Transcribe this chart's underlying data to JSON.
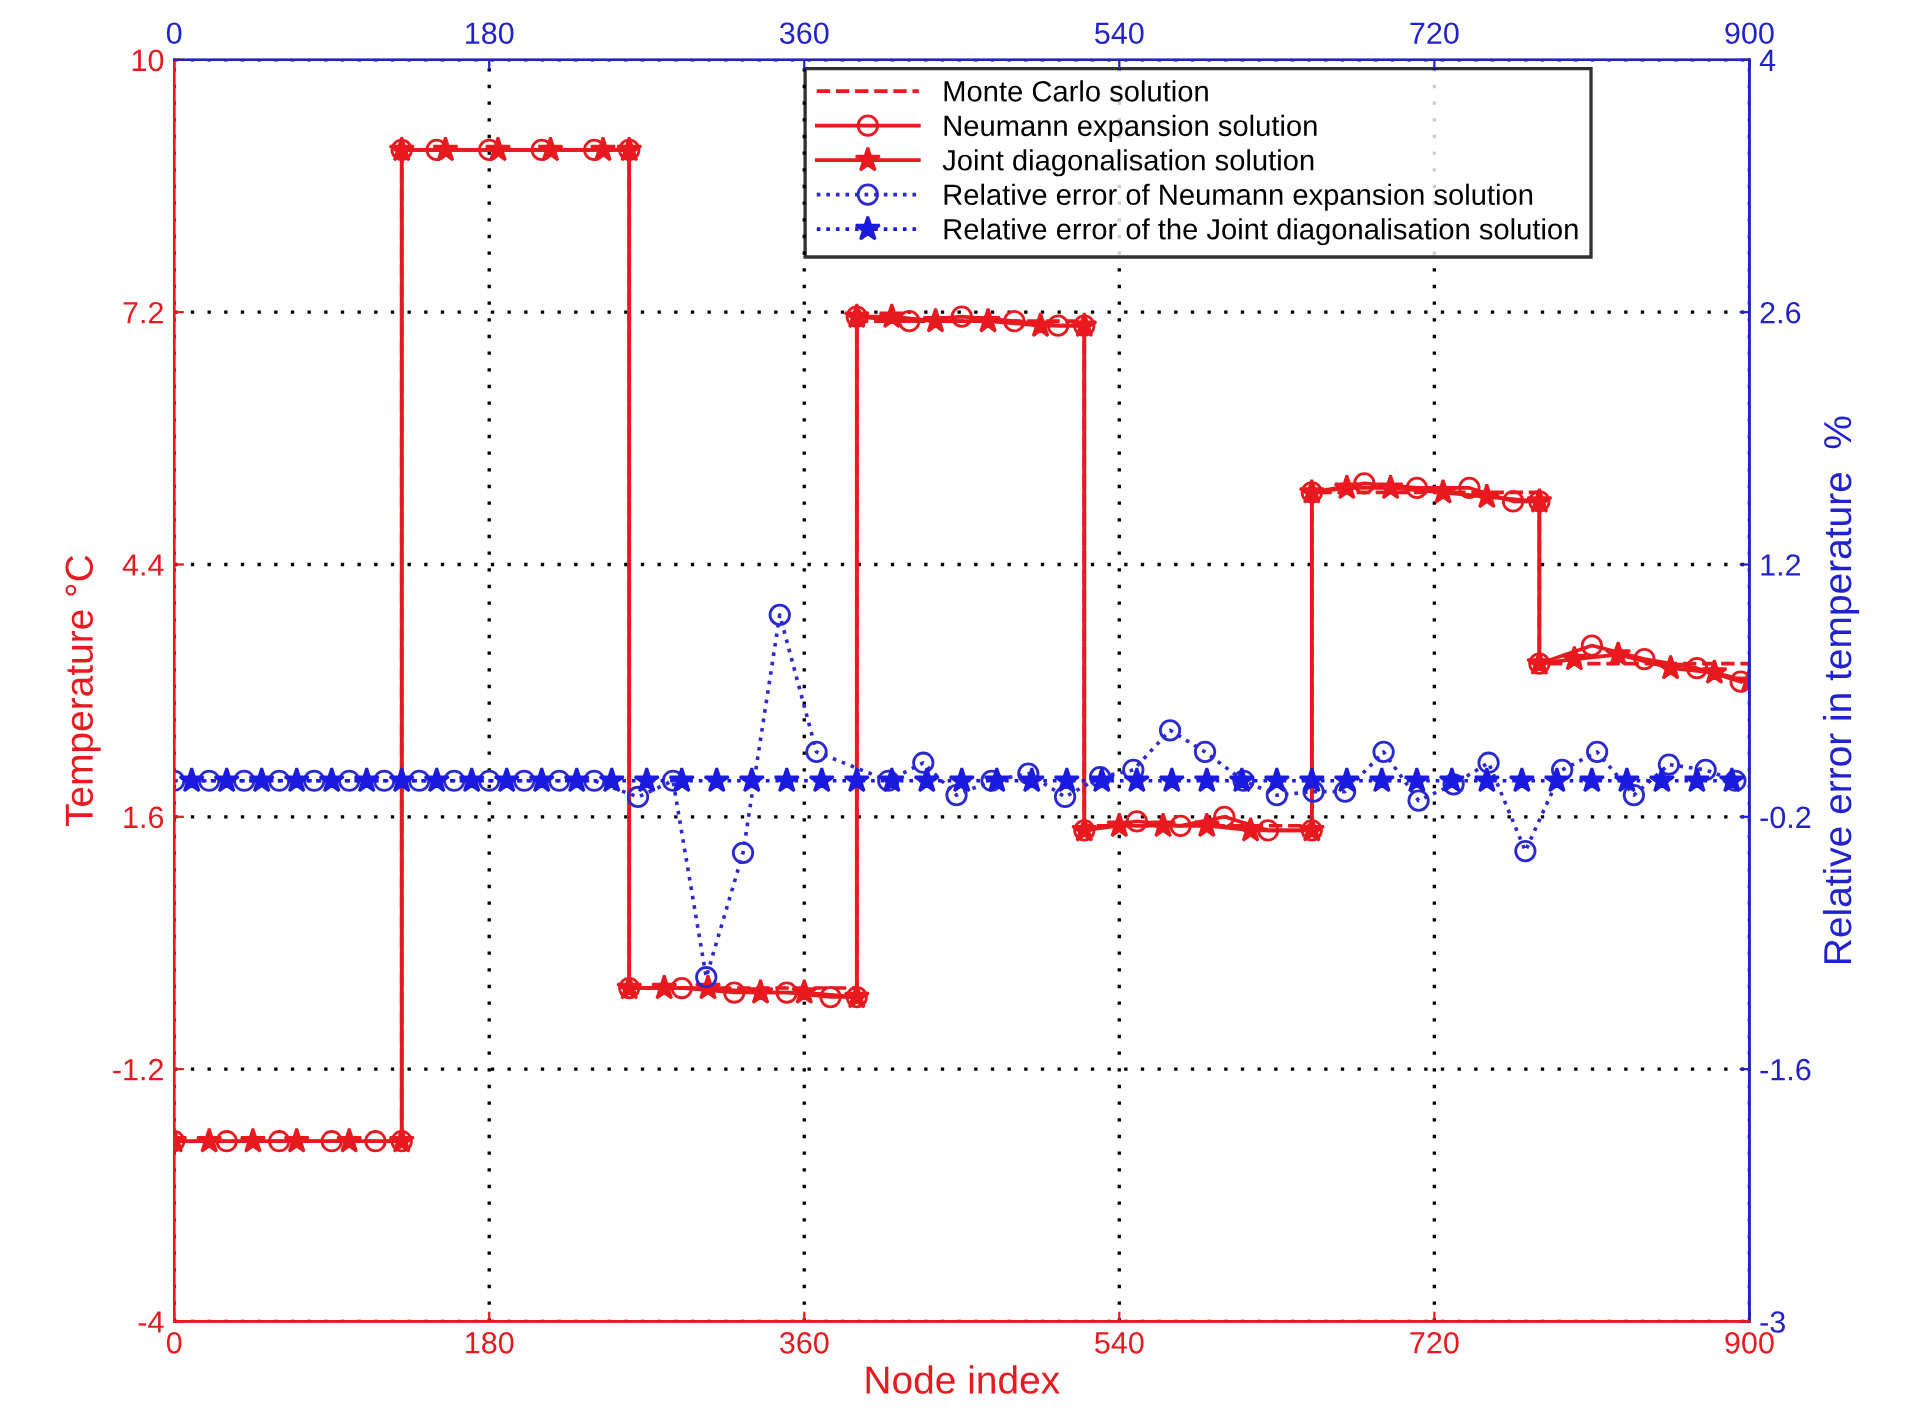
{
  "chart_data": {
    "type": "line",
    "xlabel": "Node index",
    "ylabel": "Temperature °C",
    "y2label": "Relative error in temperature  %",
    "xlim": [
      0,
      900
    ],
    "xticks": [
      0,
      180,
      360,
      540,
      720,
      900
    ],
    "x2lim": [
      0,
      900
    ],
    "x2ticks": [
      0,
      180,
      360,
      540,
      720,
      900
    ],
    "ylim": [
      -4,
      10
    ],
    "yticks": [
      -4,
      -1.2,
      1.6,
      4.4,
      7.2,
      10
    ],
    "y2lim": [
      -3,
      4
    ],
    "y2ticks": [
      -3,
      -1.6,
      -0.2,
      1.2,
      2.6,
      4
    ],
    "grid": true,
    "legend": "top right",
    "series": [
      {
        "name": "Monte Carlo solution",
        "type": "step",
        "color": "#e8191f",
        "line_style": "dashed",
        "x": [
          0,
          130,
          260,
          390,
          520,
          650,
          780,
          900
        ],
        "values": [
          -2.0,
          9.0,
          -0.3,
          7.1,
          1.5,
          5.2,
          3.3,
          3.1
        ]
      },
      {
        "name": "Neumann expansion solution",
        "color": "#e8191f",
        "line_style": "solid",
        "marker": "circle",
        "x": [
          0,
          30,
          60,
          90,
          115,
          130,
          130,
          150,
          180,
          210,
          240,
          260,
          260,
          290,
          320,
          350,
          375,
          390,
          390,
          420,
          450,
          480,
          505,
          520,
          520,
          550,
          575,
          600,
          625,
          650,
          650,
          680,
          710,
          740,
          765,
          780,
          780,
          810,
          840,
          870,
          895
        ],
        "values": [
          -2.0,
          -2.0,
          -2.0,
          -2.0,
          -2.0,
          -2.0,
          9.0,
          9.0,
          9.0,
          9.0,
          9.0,
          9.0,
          -0.3,
          -0.3,
          -0.35,
          -0.35,
          -0.4,
          -0.4,
          7.15,
          7.1,
          7.15,
          7.1,
          7.05,
          7.05,
          1.45,
          1.55,
          1.5,
          1.6,
          1.45,
          1.45,
          5.2,
          5.3,
          5.25,
          5.25,
          5.1,
          5.1,
          3.3,
          3.5,
          3.35,
          3.25,
          3.1
        ]
      },
      {
        "name": "Joint diagonalisation solution",
        "color": "#e8191f",
        "line_style": "solid",
        "marker": "star",
        "x": [
          0,
          20,
          45,
          70,
          100,
          130,
          130,
          155,
          185,
          215,
          245,
          260,
          260,
          280,
          305,
          335,
          360,
          390,
          390,
          410,
          435,
          465,
          495,
          520,
          520,
          540,
          565,
          590,
          615,
          650,
          650,
          670,
          695,
          725,
          750,
          780,
          780,
          800,
          825,
          855,
          880,
          900
        ],
        "values": [
          -2.0,
          -2.0,
          -2.0,
          -2.0,
          -2.0,
          -2.0,
          9.0,
          9.0,
          9.0,
          9.0,
          9.0,
          9.0,
          -0.3,
          -0.3,
          -0.3,
          -0.35,
          -0.35,
          -0.4,
          7.15,
          7.15,
          7.1,
          7.1,
          7.05,
          7.05,
          1.45,
          1.5,
          1.5,
          1.5,
          1.45,
          1.45,
          5.2,
          5.25,
          5.25,
          5.2,
          5.15,
          5.1,
          3.3,
          3.35,
          3.4,
          3.25,
          3.2,
          3.1
        ]
      },
      {
        "name": "Relative error of Neumann expansion solution",
        "axis": "y2",
        "color": "#2a2ad0",
        "line_style": "dotted",
        "marker": "circle",
        "x": [
          0,
          20,
          40,
          60,
          80,
          100,
          120,
          140,
          160,
          180,
          200,
          220,
          240,
          265,
          285,
          304,
          325,
          346,
          367,
          408,
          428,
          447,
          467,
          488,
          509,
          529,
          548,
          569,
          589,
          611,
          630,
          651,
          669,
          691,
          711,
          731,
          751,
          772,
          793,
          813,
          834,
          854,
          875,
          892
        ],
        "values": [
          0,
          0,
          0,
          0,
          0,
          0,
          0,
          0,
          0,
          0,
          0,
          0,
          0,
          -0.09,
          0,
          -1.09,
          -0.4,
          0.92,
          0.16,
          0,
          0.1,
          -0.08,
          0,
          0.04,
          -0.09,
          0.02,
          0.06,
          0.28,
          0.16,
          0,
          -0.08,
          -0.06,
          -0.06,
          0.16,
          -0.11,
          -0.02,
          0.1,
          -0.39,
          0.06,
          0.16,
          -0.08,
          0.09,
          0.06,
          0
        ]
      },
      {
        "name": "Relative error of the Joint diagonalisation solution",
        "axis": "y2",
        "color": "#1a1ae0",
        "line_style": "dotted",
        "marker": "star",
        "x": [
          10,
          30,
          50,
          70,
          90,
          110,
          130,
          150,
          170,
          190,
          210,
          230,
          250,
          270,
          290,
          310,
          330,
          350,
          370,
          390,
          410,
          430,
          450,
          470,
          490,
          510,
          530,
          550,
          570,
          590,
          610,
          630,
          650,
          670,
          690,
          710,
          730,
          750,
          770,
          790,
          810,
          830,
          850,
          870,
          890
        ],
        "values": [
          0,
          0,
          0,
          0,
          0,
          0,
          0,
          0,
          0,
          0,
          0,
          0,
          0,
          0,
          0,
          0,
          0,
          0,
          0,
          0,
          0,
          0,
          0,
          0,
          0,
          0,
          0,
          0,
          0,
          0,
          0,
          0,
          0,
          0,
          0,
          0,
          0,
          0,
          0,
          0,
          0,
          0,
          0,
          0,
          0
        ]
      }
    ]
  }
}
